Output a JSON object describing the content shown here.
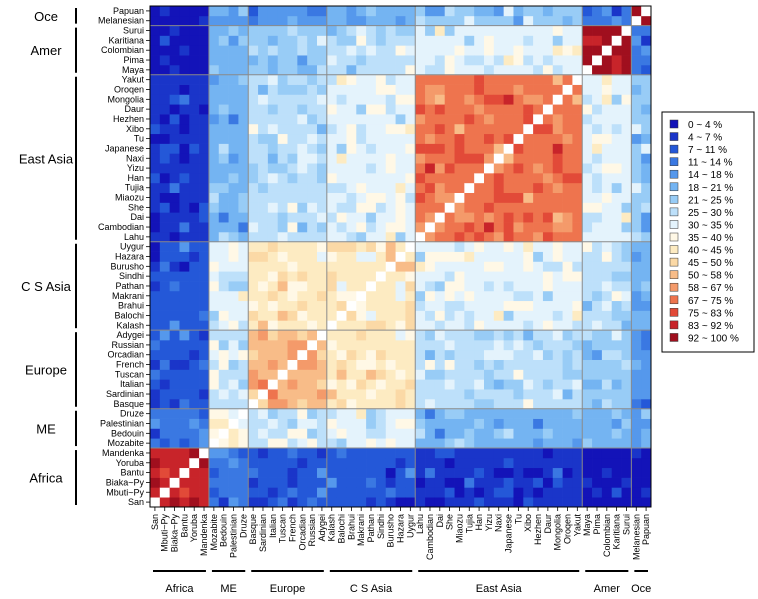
{
  "chart_data": {
    "type": "heatmap",
    "title": "",
    "xlabel": "",
    "ylabel": "",
    "populations_bottom_to_top": [
      "San",
      "Mbuti~Py",
      "Biaka~Py",
      "Bantu",
      "Yoruba",
      "Mandenka",
      "Mozabite",
      "Bedouin",
      "Palestinian",
      "Druze",
      "Basque",
      "Sardinian",
      "Italian",
      "Tuscan",
      "French",
      "Orcadian",
      "Russian",
      "Adygei",
      "Kalash",
      "Balochi",
      "Brahui",
      "Makrani",
      "Pathan",
      "Sindhi",
      "Burusho",
      "Hazara",
      "Uygur",
      "Lahu",
      "Cambodian",
      "Dai",
      "She",
      "Miaozu",
      "Tujia",
      "Han",
      "Yizu",
      "Naxi",
      "Japanese",
      "Tu",
      "Xibo",
      "Hezhen",
      "Daur",
      "Mongolia",
      "Oroqen",
      "Yakut",
      "Maya",
      "Pima",
      "Colombian",
      "Karitiana",
      "Surui",
      "Melanesian",
      "Papuan"
    ],
    "groups": [
      {
        "name": "Africa",
        "count": 6
      },
      {
        "name": "ME",
        "count": 4
      },
      {
        "name": "Europe",
        "count": 8
      },
      {
        "name": "C S Asia",
        "count": 9
      },
      {
        "name": "East Asia",
        "count": 17
      },
      {
        "name": "Amer",
        "count": 5
      },
      {
        "name": "Oce",
        "count": 2
      }
    ],
    "legend": {
      "placement": "right",
      "bins": [
        {
          "label": "0 ~ 4  %",
          "color": "#1313b8"
        },
        {
          "label": "4 ~ 7  %",
          "color": "#1a35c9"
        },
        {
          "label": "7 ~ 11  %",
          "color": "#2458d8"
        },
        {
          "label": "11 ~ 14  %",
          "color": "#3a78e2"
        },
        {
          "label": "14 ~ 18  %",
          "color": "#5598ec"
        },
        {
          "label": "18 ~ 21  %",
          "color": "#74b4f2"
        },
        {
          "label": "21 ~ 25  %",
          "color": "#98ccf6"
        },
        {
          "label": "25 ~ 30  %",
          "color": "#bde0fa"
        },
        {
          "label": "30 ~ 35  %",
          "color": "#e4f3fc"
        },
        {
          "label": "35 ~ 40  %",
          "color": "#fff8e6"
        },
        {
          "label": "40 ~ 45  %",
          "color": "#fdebc2"
        },
        {
          "label": "45 ~ 50  %",
          "color": "#fbd9a6"
        },
        {
          "label": "50 ~ 58  %",
          "color": "#f8bc88"
        },
        {
          "label": "58 ~ 67  %",
          "color": "#f49a6a"
        },
        {
          "label": "67 ~ 75  %",
          "color": "#ee744e"
        },
        {
          "label": "75 ~ 83  %",
          "color": "#e24a38"
        },
        {
          "label": "83 ~ 92  %",
          "color": "#c8242a"
        },
        {
          "label": "92 ~ 100  %",
          "color": "#a00f1e"
        }
      ]
    },
    "block_bins": [
      [
        16,
        3,
        2,
        2,
        1,
        0,
        0
      ],
      [
        3,
        9,
        7,
        8,
        5,
        5,
        4
      ],
      [
        2,
        7,
        12,
        10,
        7,
        6,
        4
      ],
      [
        2,
        8,
        10,
        10,
        8,
        7,
        5
      ],
      [
        1,
        5,
        7,
        8,
        14,
        8,
        6
      ],
      [
        0,
        5,
        6,
        7,
        8,
        17,
        3
      ],
      [
        0,
        4,
        4,
        5,
        6,
        3,
        17
      ]
    ],
    "diagonal_bin": "self (white)",
    "value_note": "Cell color bins are estimated per population-group block from the image."
  }
}
